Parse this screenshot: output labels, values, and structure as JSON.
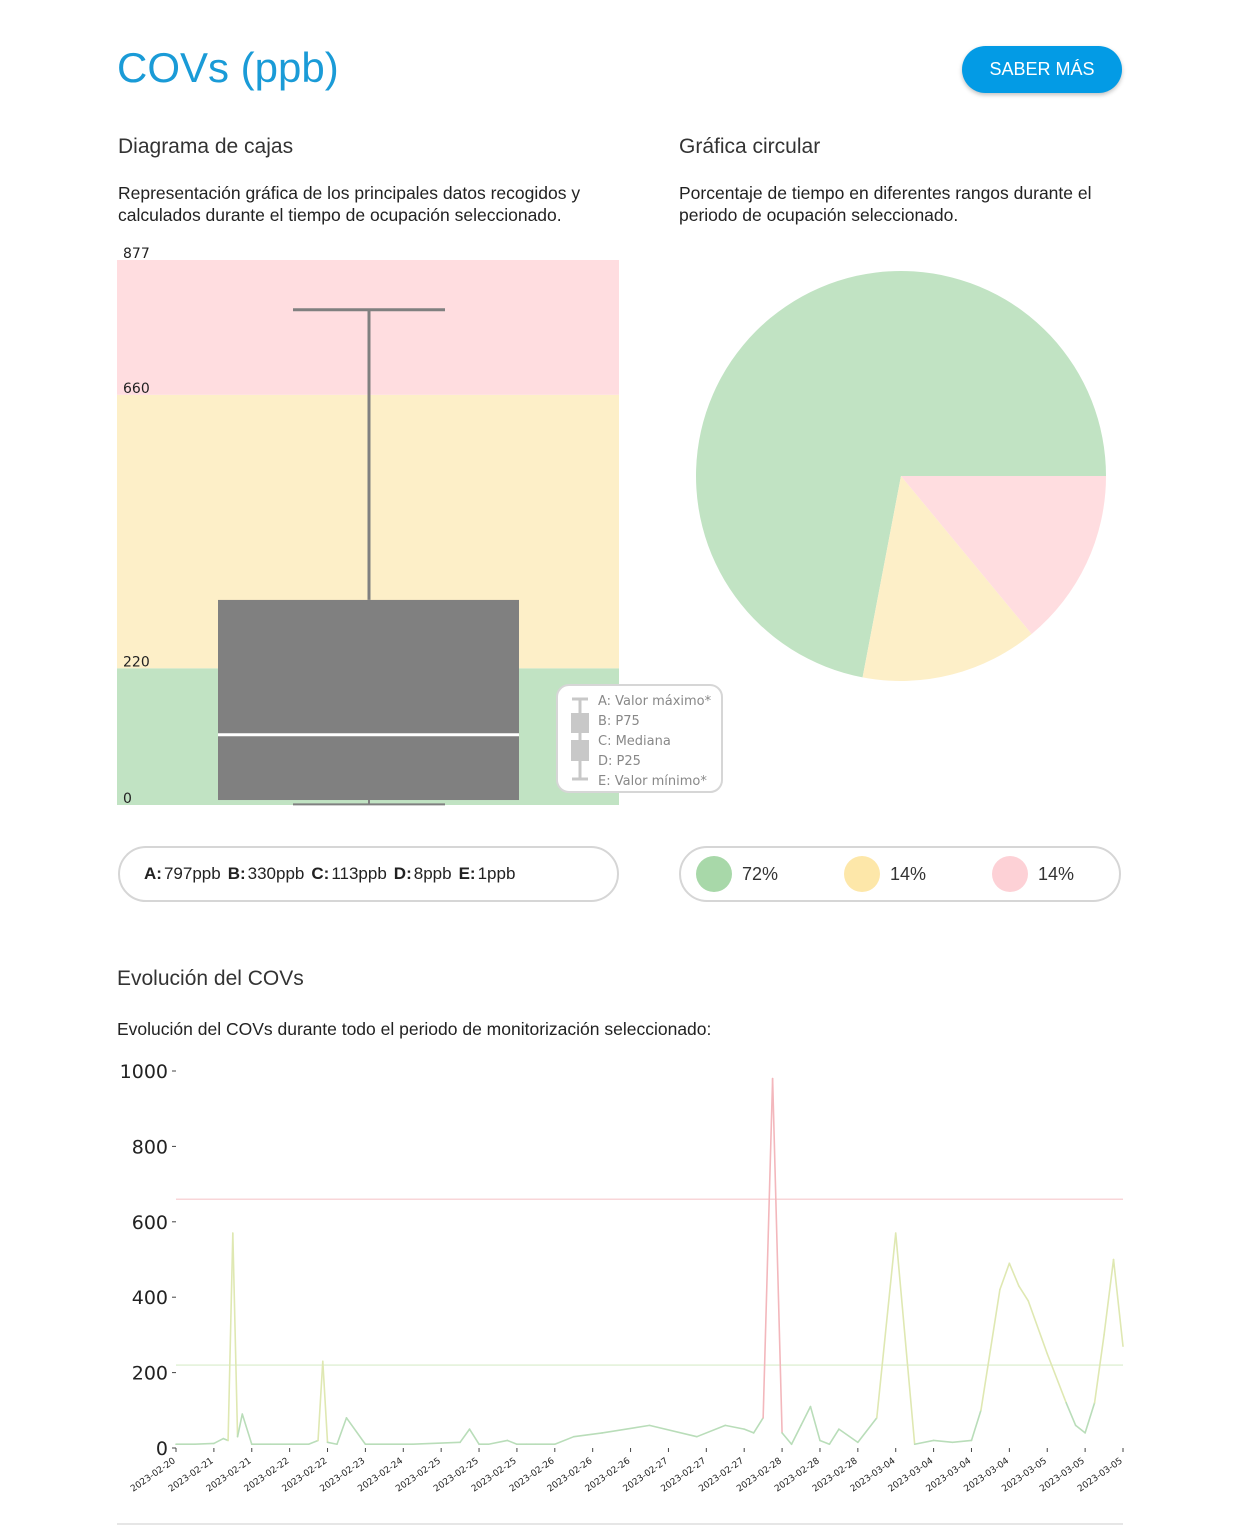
{
  "header": {
    "title": "COVs (ppb)",
    "button_label": "SABER MÁS"
  },
  "colors": {
    "green": "#c1e3c3",
    "yellow": "#fdefc8",
    "red": "#ffdde0",
    "box": "#808080",
    "accent": "#039be5",
    "dot_green": "#a8d8a9",
    "dot_yellow": "#fde7a9",
    "dot_red": "#fdd1d6"
  },
  "boxplot": {
    "heading": "Diagrama de cajas",
    "description": "Representación gráfica de los principales datos recogidos y calculados durante el tiempo de ocupación seleccionado.",
    "ticks": [
      "877",
      "660",
      "220",
      "0"
    ],
    "legend": [
      "A: Valor máximo*",
      "B: P75",
      "C: Mediana",
      "D: P25",
      "E: Valor mínimo*"
    ],
    "stats": [
      {
        "key": "A:",
        "value": "797ppb"
      },
      {
        "key": "B:",
        "value": "330ppb"
      },
      {
        "key": "C:",
        "value": "113ppb"
      },
      {
        "key": "D:",
        "value": "8ppb"
      },
      {
        "key": "E:",
        "value": "1ppb"
      }
    ]
  },
  "pie": {
    "heading": "Gráfica circular",
    "description": "Porcentaje de tiempo en diferentes rangos durante el periodo de ocupación seleccionado.",
    "labels": [
      "72%",
      "14%",
      "14%"
    ]
  },
  "evolution": {
    "heading": "Evolución del COVs",
    "description": "Evolución del COVs durante todo el periodo de monitorización seleccionado:"
  },
  "chart_data": [
    {
      "type": "box",
      "ylim": [
        0,
        877
      ],
      "bands": [
        {
          "from": 0,
          "to": 220,
          "color": "green"
        },
        {
          "from": 220,
          "to": 660,
          "color": "yellow"
        },
        {
          "from": 660,
          "to": 877,
          "color": "red"
        }
      ],
      "max": 797,
      "p75": 330,
      "median": 113,
      "p25": 8,
      "min": 1
    },
    {
      "type": "pie",
      "slices": [
        {
          "label": "72%",
          "value": 72,
          "color": "green"
        },
        {
          "label": "14%",
          "value": 14,
          "color": "yellow"
        },
        {
          "label": "14%",
          "value": 14,
          "color": "red"
        }
      ]
    },
    {
      "type": "line",
      "ylim": [
        0,
        1000
      ],
      "yticks": [
        "0",
        "200",
        "400",
        "600",
        "800",
        "1000"
      ],
      "thresholds": [
        220,
        660
      ],
      "xtick_labels": [
        "2023-02-20",
        "2023-02-21",
        "2023-02-21",
        "2023-02-22",
        "2023-02-22",
        "2023-02-23",
        "2023-02-24",
        "2023-02-25",
        "2023-02-25",
        "2023-02-25",
        "2023-02-26",
        "2023-02-26",
        "2023-02-26",
        "2023-02-27",
        "2023-02-27",
        "2023-02-27",
        "2023-02-28",
        "2023-02-28",
        "2023-02-28",
        "2023-03-04",
        "2023-03-04",
        "2023-03-04",
        "2023-03-04",
        "2023-03-05",
        "2023-03-05",
        "2023-03-05"
      ],
      "x": [
        0,
        0.02,
        0.04,
        0.05,
        0.055,
        0.06,
        0.065,
        0.07,
        0.08,
        0.1,
        0.12,
        0.14,
        0.15,
        0.155,
        0.16,
        0.17,
        0.18,
        0.2,
        0.25,
        0.3,
        0.31,
        0.32,
        0.33,
        0.35,
        0.36,
        0.37,
        0.38,
        0.4,
        0.42,
        0.45,
        0.5,
        0.55,
        0.58,
        0.6,
        0.61,
        0.62,
        0.63,
        0.64,
        0.65,
        0.66,
        0.67,
        0.68,
        0.69,
        0.7,
        0.72,
        0.74,
        0.76,
        0.78,
        0.8,
        0.82,
        0.84,
        0.85,
        0.86,
        0.87,
        0.88,
        0.89,
        0.9,
        0.92,
        0.94,
        0.95,
        0.96,
        0.97,
        0.98,
        0.99,
        1.0
      ],
      "values": [
        10,
        10,
        12,
        25,
        20,
        570,
        30,
        90,
        10,
        10,
        10,
        10,
        20,
        230,
        15,
        10,
        80,
        10,
        10,
        15,
        50,
        10,
        10,
        20,
        10,
        10,
        10,
        10,
        30,
        40,
        60,
        30,
        60,
        50,
        40,
        80,
        980,
        40,
        10,
        60,
        110,
        20,
        10,
        50,
        15,
        80,
        570,
        10,
        20,
        15,
        20,
        100,
        260,
        420,
        490,
        430,
        390,
        250,
        120,
        60,
        40,
        120,
        300,
        500,
        270
      ]
    }
  ]
}
